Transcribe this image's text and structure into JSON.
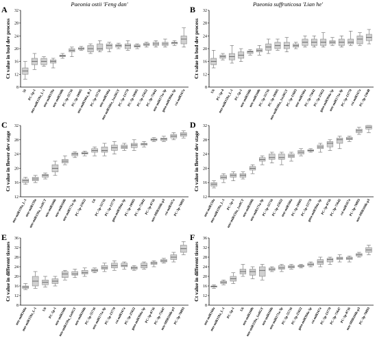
{
  "figure": {
    "col_titles": [
      "Paeonia ostii 'Feng dan'",
      "Paeonia suffruticosa 'Lian he'"
    ]
  },
  "chart_data": [
    {
      "panel": "A",
      "type": "box",
      "ylabel": "Ct value in bud dev process",
      "ylim": [
        8,
        32
      ],
      "yticks": [
        8,
        12,
        16,
        20,
        24,
        28,
        32
      ],
      "box_color": "#d0d0d0",
      "categories": [
        "5S",
        "PC-5p-1",
        "mtr-miR159a_L-1",
        "mtr-miR159a",
        "mtr-miR160b",
        "PC-5p-55716",
        "PC-5p-10905",
        "mtr-miR166a_R-2",
        "PC-5p-55716",
        "mtr-miR166a",
        "mtr-miR166a_1ss20GT",
        "PC-5p-13770",
        "PC-5p-10905",
        "PC-5p-25022",
        "PC-3p-75642",
        "mtr-miR171a-3p",
        "gma-miR394a-5p",
        "csi-miR167a"
      ],
      "boxes": [
        [
          10.5,
          12,
          13,
          14,
          16
        ],
        [
          13.5,
          15,
          16,
          17,
          18.5
        ],
        [
          14.5,
          15,
          16,
          17,
          17.5
        ],
        [
          14,
          15.5,
          16,
          16.5,
          17
        ],
        [
          17,
          17.5,
          17.8,
          18,
          18.5
        ],
        [
          17.5,
          19,
          19.5,
          20,
          20.5
        ],
        [
          19.5,
          19.8,
          20,
          20.3,
          20.7
        ],
        [
          18.5,
          19,
          20,
          21,
          21.5
        ],
        [
          19,
          19.5,
          20,
          21.5,
          22.5
        ],
        [
          19,
          20,
          21,
          21.5,
          22
        ],
        [
          20,
          20.5,
          21,
          21.3,
          21.7
        ],
        [
          19.5,
          20,
          21,
          21.5,
          22.5
        ],
        [
          20,
          20.5,
          20.8,
          21.2,
          21.5
        ],
        [
          20.5,
          21,
          21.3,
          21.7,
          22
        ],
        [
          20.5,
          21,
          21.5,
          22,
          22.5
        ],
        [
          20.5,
          21,
          21.5,
          22,
          23
        ],
        [
          21,
          21.5,
          21.8,
          22,
          22.5
        ],
        [
          20.5,
          21.5,
          23,
          24,
          26.5
        ]
      ]
    },
    {
      "panel": "B",
      "type": "box",
      "ylabel": "Ct value in bud dev process",
      "ylim": [
        8,
        32
      ],
      "yticks": [
        8,
        12,
        16,
        20,
        24,
        28,
        32
      ],
      "box_color": "#d0d0d0",
      "categories": [
        "U6",
        "PC-5p-4",
        "mtr-miR159a_L-1",
        "PC-5p-1",
        "mtr-miR166b",
        "mtr-miR160b",
        "PC-5p-55716",
        "PC-5p-10905",
        "mtr-miR166a_1ss20GT",
        "PC-5p-15603",
        "mtr-miR166a",
        "PC-5p-75642",
        "PC-5p-25022",
        "gma-miR394a-5p",
        "mtr-miR171a-3p",
        "PC-5p-13770",
        "csi-miR167a",
        "PC-3p-13648"
      ],
      "boxes": [
        [
          14,
          15,
          16,
          17,
          19.5
        ],
        [
          16.5,
          17,
          17.5,
          18,
          18.5
        ],
        [
          15.5,
          16.5,
          17.5,
          18.5,
          21
        ],
        [
          16,
          17,
          18,
          19,
          20
        ],
        [
          18,
          18.5,
          19,
          19.3,
          19.7
        ],
        [
          18,
          19,
          19.5,
          20,
          21
        ],
        [
          18.5,
          19.5,
          20.5,
          21.5,
          23
        ],
        [
          19.5,
          20,
          21,
          22,
          23
        ],
        [
          19,
          20,
          21,
          22,
          23.5
        ],
        [
          20,
          20.5,
          21,
          21.5,
          22
        ],
        [
          20.5,
          21,
          22,
          23,
          24
        ],
        [
          20.5,
          21,
          22,
          23,
          24
        ],
        [
          20.5,
          21,
          22,
          23,
          25
        ],
        [
          21,
          21.5,
          22,
          22.5,
          23.5
        ],
        [
          20.5,
          21,
          22,
          23,
          24
        ],
        [
          21,
          21.5,
          22,
          23,
          25.5
        ],
        [
          21,
          21.5,
          23,
          24,
          25
        ],
        [
          21.5,
          22.5,
          23.5,
          24.5,
          26
        ]
      ]
    },
    {
      "panel": "C",
      "type": "box",
      "ylabel": "Ct value in flower dev stage",
      "ylim": [
        12,
        32
      ],
      "yticks": [
        12,
        16,
        20,
        24,
        28,
        32
      ],
      "box_color": "#d0d0d0",
      "categories": [
        "mtr-miR159a_L-1",
        "mtr-miR159a",
        "mtr-miR159a_1ss9CT",
        "mtr-miR166b",
        "mtr-miR160b",
        "mtr-miR171a-3p",
        "PC-5p-25022",
        "U6",
        "PC-5p-55716",
        "PC-5p-13770",
        "gma-miR394a-5p",
        "PC-5p-10905",
        "PC-3p-75642",
        "PC-5p-8716",
        "mtr-MIR166b-p3",
        "csi-miR167a",
        "PC-3p-70893"
      ],
      "boxes": [
        [
          15.5,
          16,
          16.5,
          17,
          17.5
        ],
        [
          16,
          16.5,
          17,
          17.5,
          18
        ],
        [
          17,
          17.5,
          18,
          18.3,
          18.7
        ],
        [
          18,
          19,
          20,
          21,
          22
        ],
        [
          21,
          21.5,
          22,
          22.5,
          23.5
        ],
        [
          23,
          23.5,
          24,
          24.3,
          24.6
        ],
        [
          23.5,
          24,
          24.2,
          24.5,
          24.8
        ],
        [
          23.5,
          24.5,
          25,
          25.5,
          26
        ],
        [
          23.5,
          24.5,
          25,
          26,
          27
        ],
        [
          24,
          25,
          25.8,
          26.5,
          27.5
        ],
        [
          25,
          25.5,
          26,
          26.5,
          27
        ],
        [
          25,
          25.8,
          26.5,
          27,
          28
        ],
        [
          26,
          26.5,
          26.8,
          27,
          27.5
        ],
        [
          27.5,
          27.8,
          28,
          28.3,
          28.6
        ],
        [
          27.5,
          27.8,
          28.2,
          28.5,
          29
        ],
        [
          28,
          28.5,
          29,
          29.5,
          30
        ],
        [
          28.5,
          29,
          29.5,
          30,
          30.5
        ]
      ]
    },
    {
      "panel": "D",
      "type": "box",
      "ylabel": "Ct value in flower dev stage",
      "ylim": [
        12,
        32
      ],
      "yticks": [
        12,
        16,
        20,
        24,
        28,
        32
      ],
      "box_color": "#d0d0d0",
      "categories": [
        "mtr-miR159a",
        "mtr-miR159a_L-1",
        "PC-5p-1",
        "mtr-miR159a_1ss9CT",
        "mtr-miR166b",
        "mtr-miR171a-3p",
        "PC-5p-55716",
        "PC-5p-25022",
        "mtr-miR166a",
        "PC-5p-10905",
        "PC-5p-13770",
        "gma-miR394a-5p",
        "PC-5p-8716",
        "PC-3p-75642",
        "csi-miR167a",
        "PC-3p-70893",
        "mtr-MIR166b-p3"
      ],
      "boxes": [
        [
          14.5,
          15,
          15.5,
          16,
          16.5
        ],
        [
          16,
          17,
          17.5,
          18,
          18.5
        ],
        [
          16.5,
          17.5,
          18,
          18.5,
          19
        ],
        [
          17,
          17.5,
          18,
          18.5,
          19
        ],
        [
          18.5,
          19.5,
          20,
          20.5,
          21
        ],
        [
          21,
          22,
          22.5,
          23,
          23.5
        ],
        [
          21.5,
          22.5,
          23,
          24,
          24.5
        ],
        [
          21,
          22.5,
          23,
          24,
          24.5
        ],
        [
          22,
          23,
          23.5,
          24,
          24.5
        ],
        [
          23.5,
          24,
          24.5,
          25,
          25.5
        ],
        [
          24.5,
          24.8,
          25,
          25.2,
          25.5
        ],
        [
          24.5,
          25.5,
          26,
          26.5,
          27
        ],
        [
          25,
          26,
          27,
          27.5,
          28
        ],
        [
          25.5,
          27,
          28,
          28.5,
          29
        ],
        [
          27.5,
          28,
          28.3,
          28.7,
          29
        ],
        [
          29.5,
          30,
          30.5,
          31,
          31.5
        ],
        [
          30,
          31,
          31.5,
          32,
          32
        ]
      ]
    },
    {
      "panel": "E",
      "type": "box",
      "ylabel": "Ct value in different tissues",
      "ylim": [
        8,
        36
      ],
      "yticks": [
        8,
        12,
        16,
        20,
        24,
        28,
        32,
        36
      ],
      "box_color": "#d0d0d0",
      "categories": [
        "mtr-miR160a",
        "mtr-miR159a_L-1",
        "U6",
        "PC-5p-1",
        "mtr-miR160b",
        "mtr-miR159a_1ss9GT",
        "mtr-miR166b",
        "PC-5p-55716",
        "mtr-miR171a-3p",
        "PC-5p-13770",
        "csi-miR167a",
        "PC-5p-25022",
        "gma-miR394a-5p",
        "PC-5p-8716",
        "PC-3p-75647",
        "mtr-MIR166b-p3",
        "PC-3p-70893"
      ],
      "boxes": [
        [
          14.5,
          15,
          15.5,
          16,
          17
        ],
        [
          15,
          16,
          18,
          20,
          22
        ],
        [
          15.5,
          16.5,
          17.5,
          18.5,
          20
        ],
        [
          16,
          17,
          18,
          19,
          20
        ],
        [
          18.5,
          19.5,
          21,
          22,
          22.5
        ],
        [
          19.5,
          20.5,
          21,
          22,
          23
        ],
        [
          20,
          21,
          21.5,
          22.5,
          23.5
        ],
        [
          21.5,
          22,
          22.5,
          23,
          23.5
        ],
        [
          22,
          23,
          23.5,
          24.5,
          25.5
        ],
        [
          22.5,
          23.5,
          24.5,
          25.5,
          26.5
        ],
        [
          23,
          24,
          24.5,
          25.5,
          26
        ],
        [
          22.5,
          23,
          23.5,
          24,
          24.5
        ],
        [
          23,
          23.5,
          24.5,
          25.5,
          26
        ],
        [
          24,
          25,
          25.5,
          26,
          26.5
        ],
        [
          25.5,
          26,
          26.5,
          27,
          27.5
        ],
        [
          26,
          27,
          28,
          29,
          30
        ],
        [
          29,
          30,
          31.5,
          33,
          34.5
        ]
      ]
    },
    {
      "panel": "F",
      "type": "box",
      "ylabel": "Ct value in different tissues",
      "ylim": [
        8,
        36
      ],
      "yticks": [
        8,
        12,
        16,
        20,
        24,
        28,
        32,
        36
      ],
      "box_color": "#d0d0d0",
      "categories": [
        "mtr-miR160a",
        "mtr-miR159a_L-1",
        "PC-5p-1",
        "U6",
        "mtr-miR160b",
        "mtr-miR159a_1ss9GT",
        "mtr-miR166b",
        "mtr-miR171a-3p",
        "PC-5p-55716",
        "PC-5p-25022",
        "gma-miR394a-5p",
        "csi-miR167a",
        "PC-5p-13770",
        "PC-3p-75647",
        "PC-5p-8716",
        "mtr-MIR166b-p3",
        "PC-3p-70893"
      ],
      "boxes": [
        [
          15,
          15.5,
          15.8,
          16,
          16.5
        ],
        [
          16.5,
          17,
          17.5,
          18,
          18.5
        ],
        [
          17,
          18,
          19,
          20,
          21.5
        ],
        [
          20,
          21,
          22,
          23,
          25
        ],
        [
          19,
          20.5,
          22,
          23,
          24
        ],
        [
          18.5,
          20,
          22.5,
          24,
          25
        ],
        [
          22,
          22.5,
          23,
          23.5,
          24
        ],
        [
          22,
          23,
          23.5,
          24.5,
          25
        ],
        [
          23,
          23.5,
          24,
          24.5,
          25
        ],
        [
          23.5,
          24,
          24.3,
          24.6,
          25
        ],
        [
          24,
          24.5,
          25,
          25.5,
          26
        ],
        [
          24,
          25,
          26,
          27,
          28
        ],
        [
          25,
          26,
          27,
          27.5,
          28
        ],
        [
          26,
          27,
          27.5,
          28,
          29
        ],
        [
          26,
          27,
          27.5,
          28,
          28.5
        ],
        [
          28,
          28.5,
          29,
          29.5,
          30
        ],
        [
          29,
          30,
          31,
          32,
          33
        ]
      ]
    }
  ]
}
